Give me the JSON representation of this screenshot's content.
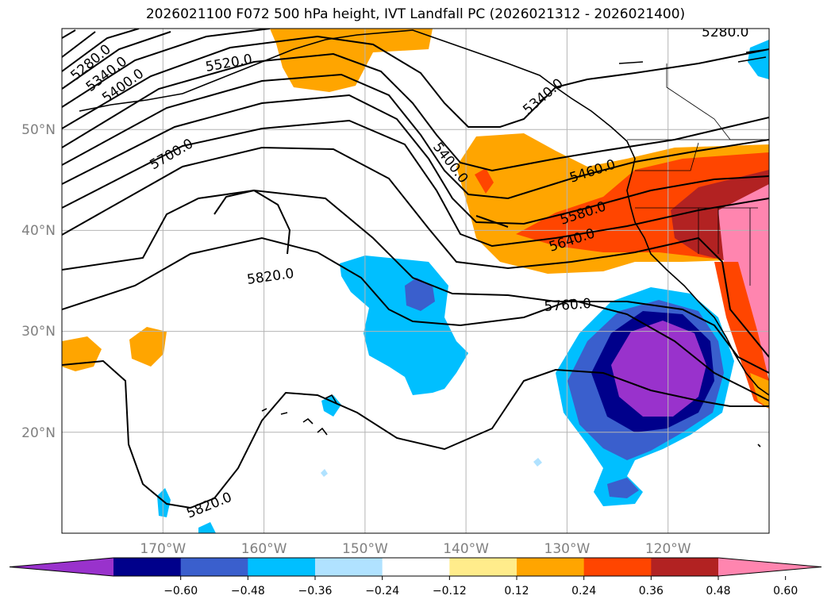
{
  "title": "2026021100 F072 500 hPa height, IVT Landfall PC (2026021312 - 2026021400)",
  "map": {
    "lon_range": [
      -180,
      -110
    ],
    "lat_range": [
      10,
      60
    ],
    "lon_ticks": [
      {
        "lon": -170,
        "label": "170°W"
      },
      {
        "lon": -160,
        "label": "160°W"
      },
      {
        "lon": -150,
        "label": "150°W"
      },
      {
        "lon": -140,
        "label": "140°W"
      },
      {
        "lon": -130,
        "label": "130°W"
      },
      {
        "lon": -120,
        "label": "120°W"
      }
    ],
    "lat_ticks": [
      {
        "lat": 50,
        "label": "50°N"
      },
      {
        "lat": 40,
        "label": "40°N"
      },
      {
        "lat": 30,
        "label": "30°N"
      },
      {
        "lat": 20,
        "label": "20°N"
      }
    ],
    "gridlines": true,
    "contour_labels": [
      "5280.0",
      "5340.0",
      "5400.0",
      "5520.0",
      "5700.0",
      "5820.0",
      "5400.0",
      "5460.0",
      "5580.0",
      "5640.0",
      "5760.0",
      "5820.0",
      "5280.0",
      "5340.0"
    ]
  },
  "colorbar": {
    "ticks": [
      "−0.60",
      "−0.48",
      "−0.36",
      "−0.24",
      "−0.12",
      "0.12",
      "0.24",
      "0.36",
      "0.48",
      "0.60"
    ],
    "colors": [
      "#9932CC",
      "#00008B",
      "#3A5FCD",
      "#00BFFF",
      "#B0E2FF",
      "#FFFFFF",
      "#FFEC8B",
      "#FFA500",
      "#FF4500",
      "#B22222",
      "#FF85AF"
    ],
    "extend": "both"
  }
}
